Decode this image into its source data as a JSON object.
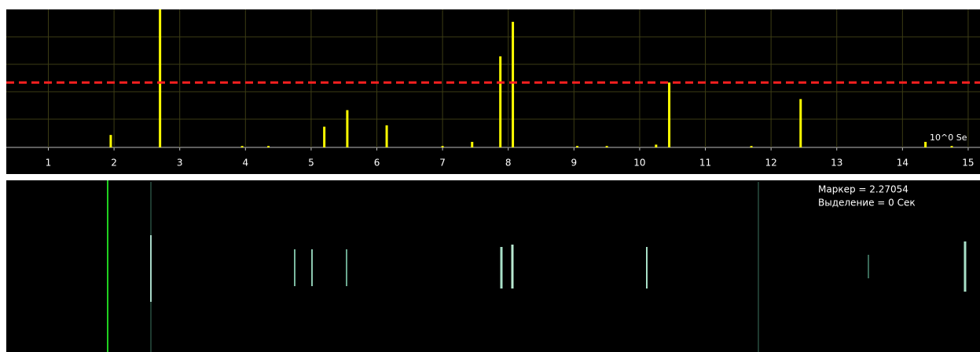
{
  "chart_data": {
    "type": "bar",
    "x": [
      1.95,
      2.7,
      3.95,
      4.35,
      5.2,
      5.55,
      6.15,
      7.0,
      7.45,
      7.88,
      8.07,
      9.05,
      9.5,
      10.25,
      10.45,
      11.7,
      12.45,
      14.35,
      14.75
    ],
    "values": [
      0.09,
      1.0,
      0.01,
      0.01,
      0.15,
      0.27,
      0.16,
      0.01,
      0.04,
      0.66,
      0.91,
      0.01,
      0.01,
      0.02,
      0.47,
      0.01,
      0.35,
      0.04,
      0.01
    ],
    "color": "#ffff00",
    "xlim": [
      0.36,
      15.18
    ],
    "ylim": [
      0,
      1
    ],
    "xticks": [
      1,
      2,
      3,
      4,
      5,
      6,
      7,
      8,
      9,
      10,
      11,
      12,
      13,
      14,
      15
    ],
    "grid": true,
    "threshold": 0.47,
    "threshold_color": "#ff2020",
    "scale_label": "10^0 Se"
  },
  "status": {
    "marker": "Маркер = 2.27054",
    "selection": "Выделение = 0 Сек"
  }
}
